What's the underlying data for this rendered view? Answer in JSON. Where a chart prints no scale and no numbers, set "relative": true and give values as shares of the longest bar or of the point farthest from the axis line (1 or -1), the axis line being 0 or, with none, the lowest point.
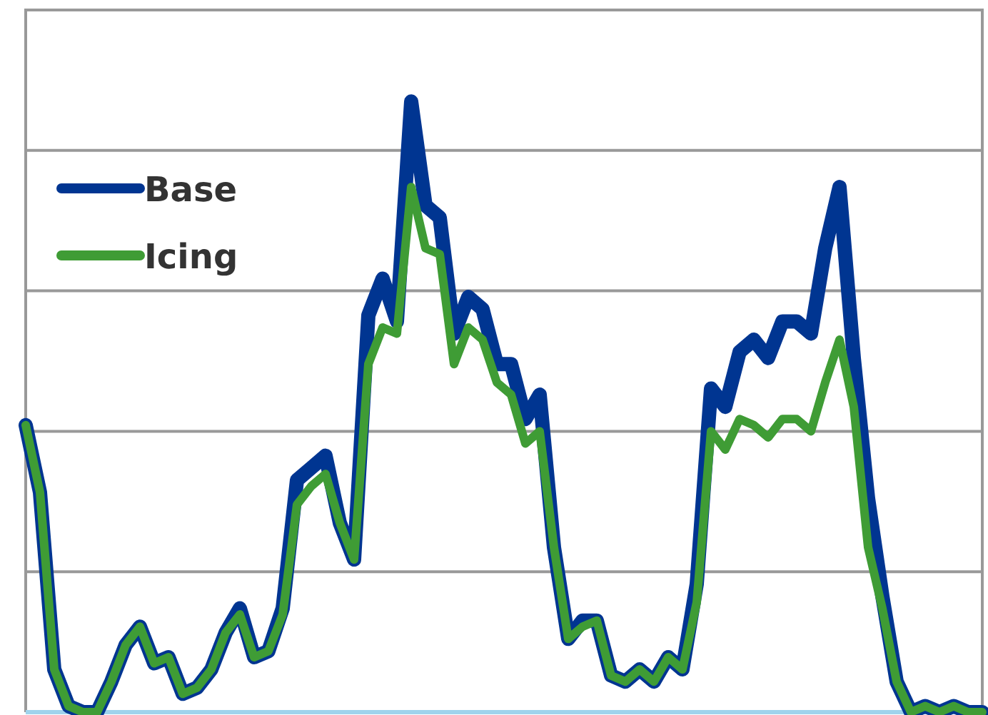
{
  "chart_data": {
    "type": "line",
    "relative": true,
    "grid": "y",
    "legend": "top left",
    "line_style": "solid",
    "marker": "none",
    "categories": [
      null,
      null,
      null,
      null,
      null,
      null,
      null,
      null,
      null,
      null,
      null,
      null,
      null,
      null,
      null,
      null,
      null,
      null,
      null,
      null,
      null,
      null,
      null,
      null,
      null,
      null,
      null,
      null,
      null,
      null,
      null,
      null,
      null,
      null,
      null,
      null,
      null,
      null,
      null,
      null,
      null,
      null,
      null,
      null,
      null,
      null,
      null,
      null,
      null,
      null,
      null,
      null,
      null,
      null,
      null,
      null,
      null,
      null,
      null,
      null,
      null,
      null,
      null,
      null,
      null,
      null,
      null,
      null
    ],
    "series": [
      {
        "name": "Base",
        "color": "#003591",
        "values": [
          0.47,
          0.36,
          0.07,
          0.01,
          0,
          0,
          0.05,
          0.11,
          0.14,
          0.08,
          0.09,
          0.03,
          0.04,
          0.07,
          0.13,
          0.17,
          0.09,
          0.1,
          0.17,
          0.38,
          0.4,
          0.42,
          0.31,
          0.25,
          0.65,
          0.71,
          0.64,
          1,
          0.83,
          0.81,
          0.62,
          0.68,
          0.66,
          0.57,
          0.57,
          0.48,
          0.52,
          0.27,
          0.12,
          0.15,
          0.15,
          0.06,
          0.05,
          0.07,
          0.05,
          0.09,
          0.07,
          0.21,
          0.53,
          0.5,
          0.59,
          0.61,
          0.58,
          0.64,
          0.64,
          0.62,
          0.76,
          0.86,
          0.58,
          0.35,
          0.19,
          0.05,
          0,
          0.01,
          0,
          0.01,
          0,
          0
        ]
      },
      {
        "name": "Icing",
        "color": "#3f9c35",
        "values": [
          0.47,
          0.36,
          0.07,
          0.01,
          0,
          0,
          0.05,
          0.11,
          0.14,
          0.08,
          0.09,
          0.03,
          0.04,
          0.07,
          0.13,
          0.16,
          0.09,
          0.1,
          0.16,
          0.34,
          0.37,
          0.39,
          0.31,
          0.25,
          0.57,
          0.63,
          0.62,
          0.86,
          0.76,
          0.75,
          0.57,
          0.63,
          0.61,
          0.54,
          0.52,
          0.44,
          0.46,
          0.27,
          0.12,
          0.14,
          0.15,
          0.06,
          0.05,
          0.07,
          0.05,
          0.09,
          0.07,
          0.18,
          0.46,
          0.43,
          0.48,
          0.47,
          0.45,
          0.48,
          0.48,
          0.46,
          0.54,
          0.61,
          0.5,
          0.27,
          0.17,
          0.05,
          0,
          0.01,
          0,
          0.01,
          0,
          0
        ]
      }
    ]
  }
}
